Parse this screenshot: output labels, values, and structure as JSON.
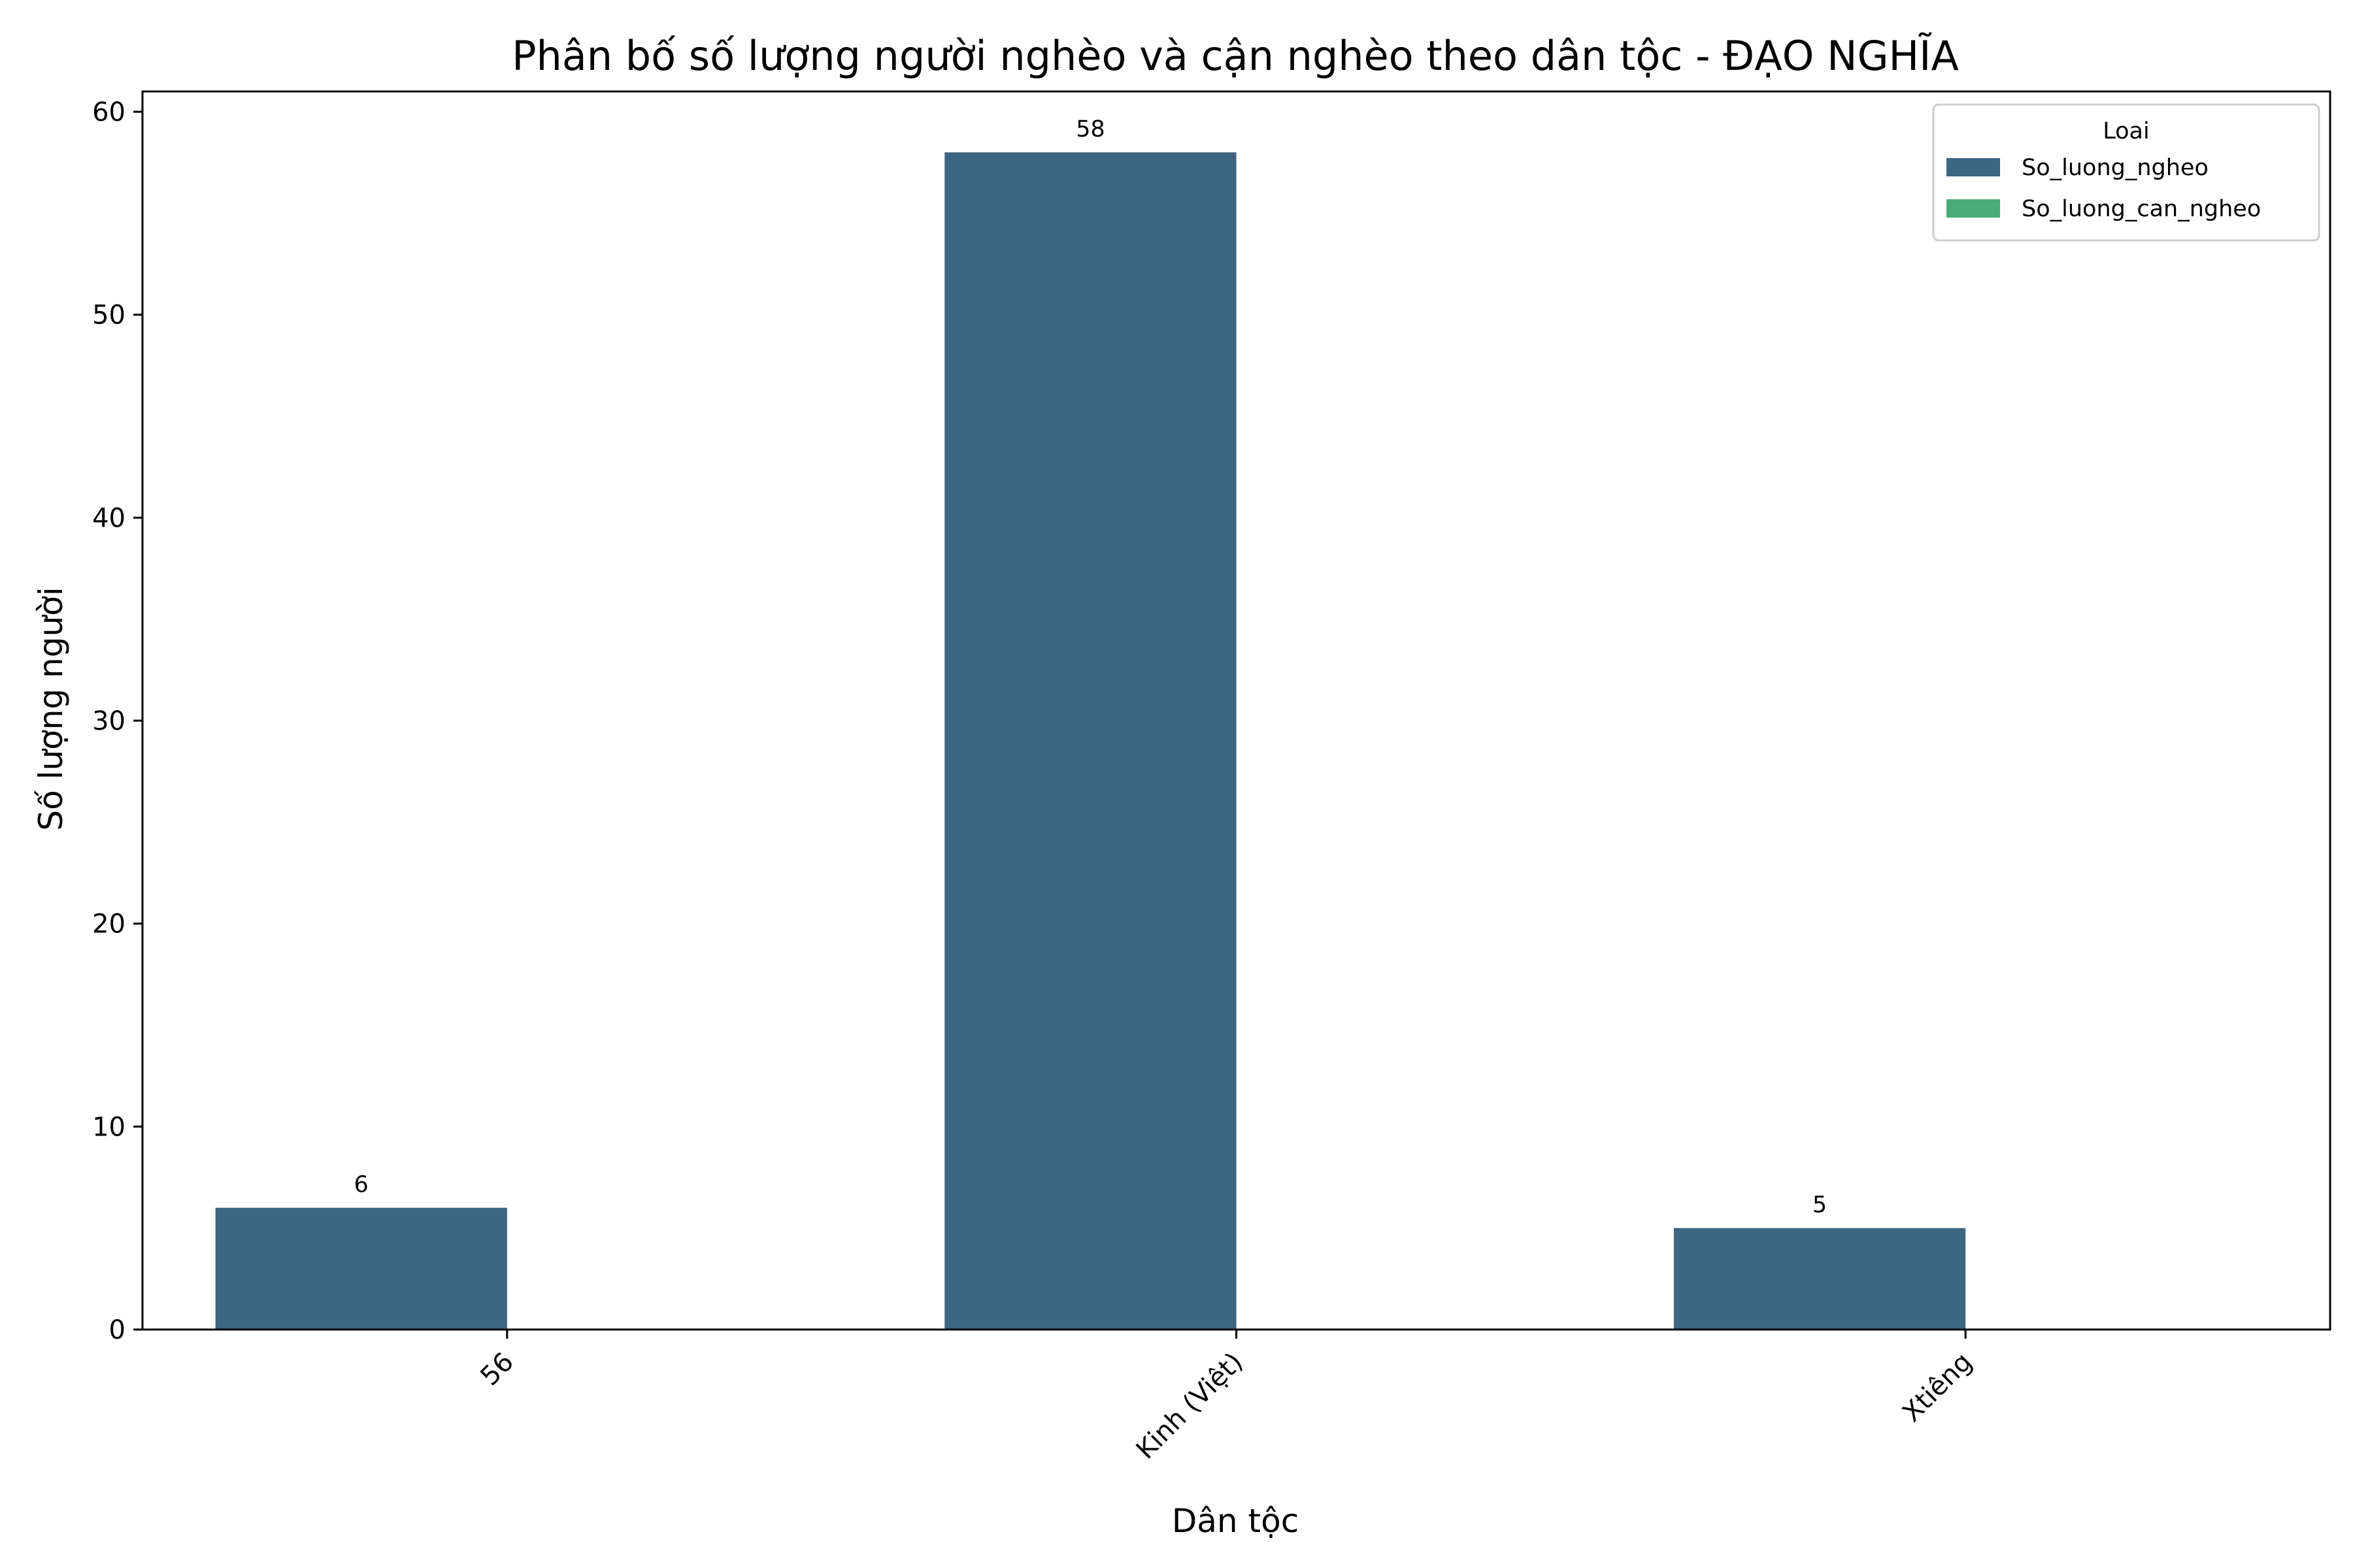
{
  "chart_data": {
    "type": "bar",
    "title": "Phân bố số lượng người nghèo và cận nghèo theo dân tộc - ĐẠO NGHĨA",
    "xlabel": "Dân tộc",
    "ylabel": "Số lượng người",
    "categories": [
      "56",
      "Kinh (Việt)",
      "Xtiêng"
    ],
    "series": [
      {
        "name": "So_luong_ngheo",
        "values": [
          6,
          58,
          5
        ],
        "color": "#3e6581"
      },
      {
        "name": "So_luong_can_ngheo",
        "values": [
          0,
          0,
          0
        ],
        "color": "#48ac78"
      }
    ],
    "data_labels": [
      "6",
      "58",
      "5"
    ],
    "ylim": [
      0,
      61
    ],
    "yticks": [
      0,
      10,
      20,
      30,
      40,
      50,
      60
    ],
    "legend": {
      "title": "Loai",
      "placement": "top-right"
    },
    "grid": false
  }
}
